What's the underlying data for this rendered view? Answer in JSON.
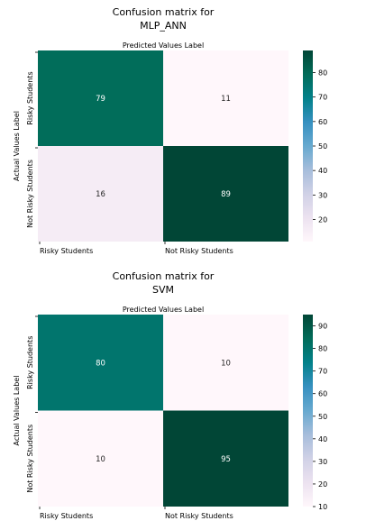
{
  "chart_data": [
    {
      "type": "heatmap",
      "title_lines": [
        "Confusion matrix for",
        "MLP_ANN"
      ],
      "xlabel": "Predicted Values Label",
      "ylabel": "Actual Values Label",
      "x_categories": [
        "Risky Students",
        "Not Risky Students"
      ],
      "y_categories": [
        "Risky Students",
        "Not Risky Students"
      ],
      "values": [
        [
          79,
          11
        ],
        [
          16,
          89
        ]
      ],
      "colormap": "PuBuGn",
      "colorbar_range": [
        11,
        89
      ],
      "colorbar_ticks": [
        20,
        30,
        40,
        50,
        60,
        70,
        80
      ]
    },
    {
      "type": "heatmap",
      "title_lines": [
        "Confusion matrix for",
        "SVM"
      ],
      "xlabel": "Predicted Values Label",
      "ylabel": "Actual Values Label",
      "x_categories": [
        "Risky Students",
        "Not Risky Students"
      ],
      "y_categories": [
        "Risky Students",
        "Not Risky Students"
      ],
      "values": [
        [
          80,
          10
        ],
        [
          10,
          95
        ]
      ],
      "colormap": "PuBuGn",
      "colorbar_range": [
        10,
        95
      ],
      "colorbar_ticks": [
        10,
        20,
        30,
        40,
        50,
        60,
        70,
        80,
        90
      ]
    }
  ]
}
